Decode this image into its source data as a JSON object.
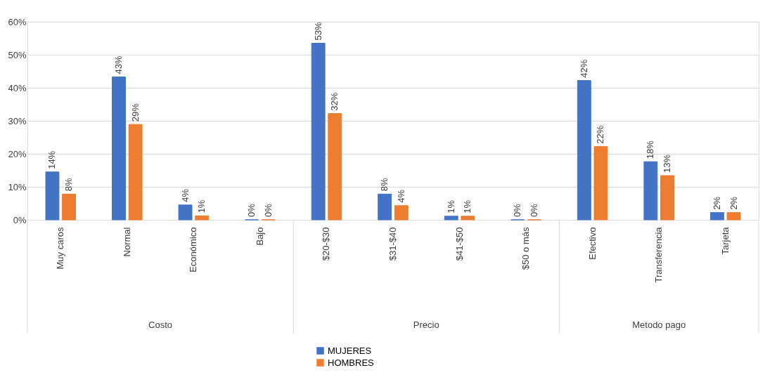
{
  "chart_data": {
    "type": "bar",
    "categories": [
      "Muy caros",
      "Normal",
      "Económico",
      "Bajo",
      "$20-$30",
      "$31-$40",
      "$41-$50",
      "$50 o más",
      "Efectivo",
      "Transferencia",
      "Tarjeta"
    ],
    "series": [
      {
        "name": "MUJERES",
        "color": "#4472c4",
        "values": [
          14.5,
          43.3,
          4.5,
          0,
          53.5,
          7.8,
          1.1,
          0,
          42.2,
          17.6,
          2.2
        ],
        "value_labels": [
          "14%",
          "43%",
          "4%",
          "0%",
          "53%",
          "8%",
          "1%",
          "0%",
          "42%",
          "18%",
          "2%"
        ]
      },
      {
        "name": "HOMBRES",
        "color": "#ed7d31",
        "values": [
          7.8,
          28.9,
          1.2,
          0,
          32.2,
          4.3,
          1.1,
          0,
          22.2,
          13.4,
          2.2
        ],
        "value_labels": [
          "8%",
          "29%",
          "1%",
          "0%",
          "32%",
          "4%",
          "1%",
          "0%",
          "22%",
          "13%",
          "2%"
        ]
      }
    ],
    "ylim": [
      0,
      60
    ],
    "yticks": [
      {
        "value": 0,
        "label": "0%"
      },
      {
        "value": 10,
        "label": "10%"
      },
      {
        "value": 20,
        "label": "20%"
      },
      {
        "value": 30,
        "label": "30%"
      },
      {
        "value": 40,
        "label": "40%"
      },
      {
        "value": 50,
        "label": "50%"
      },
      {
        "value": 60,
        "label": "60%"
      }
    ],
    "grid": "y",
    "legend": "bottom",
    "annotations": [
      "Costo",
      "Precio",
      "Metodo pago"
    ]
  }
}
